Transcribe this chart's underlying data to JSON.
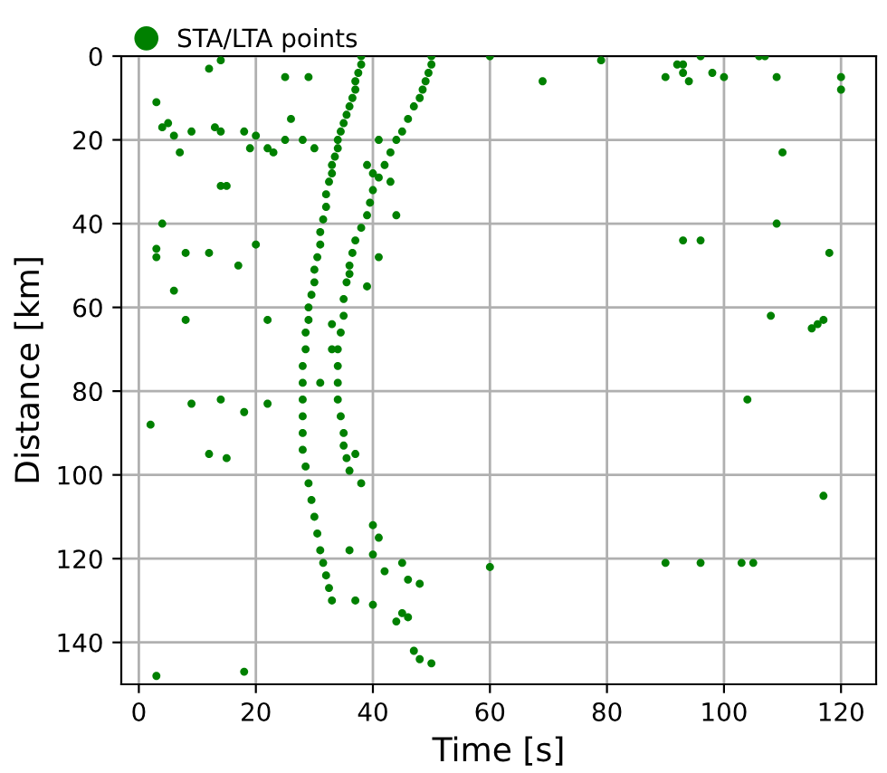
{
  "chart_data": {
    "type": "scatter",
    "xlabel": "Time [s]",
    "ylabel": "Distance [km]",
    "xlim": [
      -3,
      126
    ],
    "ylim": [
      150,
      0
    ],
    "xticks": [
      0,
      20,
      40,
      60,
      80,
      100,
      120
    ],
    "yticks": [
      0,
      20,
      40,
      60,
      80,
      100,
      120,
      140
    ],
    "grid": true,
    "legend": "top left",
    "marker": "circle",
    "series": [
      {
        "name": "STA/LTA points",
        "color": "#008000",
        "x": [
          38,
          38,
          37.5,
          37,
          37,
          36.5,
          36,
          35.5,
          35,
          34.5,
          34,
          34,
          33.5,
          33,
          33,
          32.5,
          32,
          32,
          31.5,
          31,
          31,
          30.5,
          30,
          30,
          29.5,
          29,
          29,
          28.5,
          28.5,
          28,
          28,
          28,
          28,
          28,
          28,
          28.5,
          29,
          29.5,
          30,
          30.5,
          31,
          31.5,
          32,
          32.5,
          33,
          50,
          50,
          49.5,
          49,
          48.5,
          48,
          47,
          46,
          45,
          44,
          43,
          42,
          41,
          40,
          39.5,
          39,
          38,
          37,
          36.5,
          36,
          35.5,
          35,
          35,
          34.5,
          34,
          34,
          34,
          34,
          34.5,
          35,
          35,
          35.5,
          36,
          41,
          40,
          43,
          39,
          44,
          41,
          39,
          36,
          33,
          31,
          37,
          38,
          40,
          41,
          40,
          36,
          42,
          45,
          46,
          48,
          46,
          47,
          48,
          50,
          37,
          40,
          44,
          45,
          33,
          14,
          25,
          29,
          12,
          3,
          4,
          5,
          6,
          7,
          9,
          13,
          14,
          18,
          19,
          20,
          22,
          23,
          25,
          28,
          30,
          26,
          4,
          3,
          3,
          8,
          12,
          17,
          20,
          14,
          15,
          6,
          8,
          22,
          2,
          9,
          14,
          22,
          12,
          15,
          18,
          3,
          18,
          60,
          69,
          79,
          90,
          92,
          93,
          93,
          94,
          96,
          98,
          100,
          106,
          107,
          109,
          110,
          120,
          120,
          93,
          96,
          109,
          118,
          108,
          115,
          116,
          117,
          104,
          117,
          90,
          96,
          103,
          105,
          60
        ],
        "values": [
          0,
          2,
          4,
          6,
          8,
          10,
          12,
          14,
          16,
          18,
          20,
          22,
          24,
          26,
          28,
          30,
          33,
          36,
          39,
          42,
          45,
          48,
          51,
          54,
          57,
          60,
          63,
          66,
          70,
          74,
          78,
          82,
          86,
          90,
          94,
          98,
          102,
          106,
          110,
          114,
          118,
          121,
          124,
          127,
          130,
          0,
          2,
          4,
          6,
          8,
          10,
          12,
          15,
          18,
          20,
          23,
          26,
          29,
          32,
          35,
          38,
          41,
          44,
          47,
          50,
          54,
          58,
          62,
          66,
          70,
          74,
          78,
          82,
          86,
          90,
          93,
          96,
          99,
          20,
          28,
          30,
          26,
          38,
          48,
          55,
          52,
          70,
          78,
          95,
          102,
          112,
          115,
          119,
          118,
          123,
          121,
          125,
          126,
          134,
          142,
          144,
          145,
          130,
          131,
          135,
          133,
          64,
          1,
          5,
          5,
          3,
          11,
          17,
          16,
          19,
          23,
          18,
          17,
          18,
          18,
          22,
          19,
          22,
          23,
          20,
          20,
          22,
          15,
          40,
          46,
          48,
          47,
          47,
          50,
          45,
          31,
          31,
          56,
          63,
          63,
          88,
          83,
          82,
          83,
          95,
          96,
          85,
          148,
          147,
          0,
          6,
          1,
          5,
          2,
          2,
          4,
          6,
          0,
          4,
          5,
          0,
          0,
          5,
          23,
          5,
          8,
          44,
          44,
          40,
          47,
          62,
          65,
          64,
          63,
          82,
          105,
          121,
          121,
          121,
          121,
          122
        ]
      }
    ]
  }
}
